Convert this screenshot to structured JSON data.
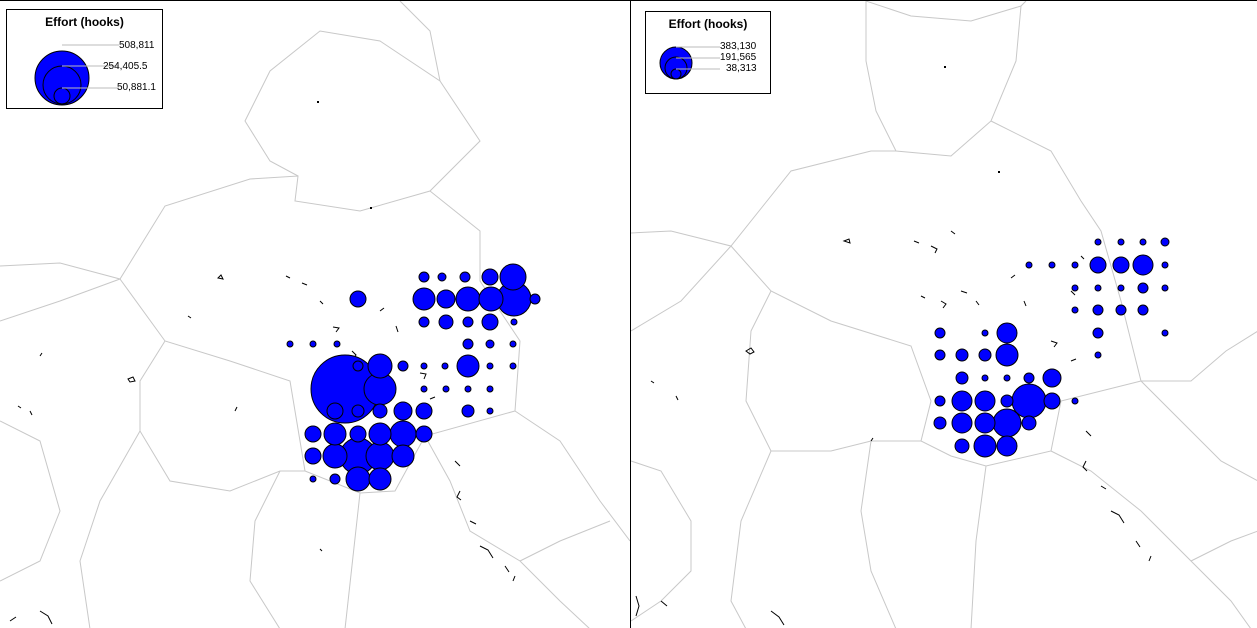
{
  "maps": [
    {
      "legend": {
        "title": "Effort (hooks)",
        "values": [
          "508,811",
          "254,405.5",
          "50,881.1"
        ]
      },
      "bubbles": [
        [
          513,
          276,
          13
        ],
        [
          490,
          276,
          8
        ],
        [
          465,
          276,
          5
        ],
        [
          442,
          276,
          4
        ],
        [
          424,
          276,
          5
        ],
        [
          424,
          298,
          11
        ],
        [
          446,
          298,
          9
        ],
        [
          468,
          298,
          12
        ],
        [
          491,
          298,
          12
        ],
        [
          514,
          298,
          17
        ],
        [
          535,
          298,
          5
        ],
        [
          358,
          298,
          8
        ],
        [
          424,
          321,
          5
        ],
        [
          446,
          321,
          7
        ],
        [
          468,
          321,
          5
        ],
        [
          490,
          321,
          8
        ],
        [
          514,
          321,
          3
        ],
        [
          468,
          343,
          5
        ],
        [
          490,
          343,
          4
        ],
        [
          513,
          343,
          3
        ],
        [
          290,
          343,
          3
        ],
        [
          313,
          343,
          3
        ],
        [
          337,
          343,
          3
        ],
        [
          358,
          365,
          5
        ],
        [
          380,
          365,
          12
        ],
        [
          403,
          365,
          5
        ],
        [
          424,
          365,
          3
        ],
        [
          445,
          365,
          3
        ],
        [
          468,
          365,
          11
        ],
        [
          490,
          365,
          3
        ],
        [
          513,
          365,
          3
        ],
        [
          345,
          388,
          34
        ],
        [
          380,
          388,
          16
        ],
        [
          424,
          388,
          3
        ],
        [
          446,
          388,
          3
        ],
        [
          468,
          388,
          3
        ],
        [
          490,
          388,
          3
        ],
        [
          335,
          410,
          8
        ],
        [
          358,
          410,
          6
        ],
        [
          380,
          410,
          7
        ],
        [
          403,
          410,
          9
        ],
        [
          424,
          410,
          8
        ],
        [
          468,
          410,
          6
        ],
        [
          490,
          410,
          3
        ],
        [
          313,
          433,
          8
        ],
        [
          335,
          433,
          11
        ],
        [
          358,
          433,
          8
        ],
        [
          380,
          433,
          11
        ],
        [
          403,
          433,
          13
        ],
        [
          424,
          433,
          8
        ],
        [
          313,
          455,
          8
        ],
        [
          335,
          455,
          12
        ],
        [
          358,
          455,
          18
        ],
        [
          380,
          455,
          14
        ],
        [
          403,
          455,
          11
        ],
        [
          313,
          478,
          3
        ],
        [
          335,
          478,
          5
        ],
        [
          358,
          478,
          12
        ],
        [
          380,
          478,
          11
        ]
      ]
    },
    {
      "legend": {
        "title": "Effort (hooks)",
        "values": [
          "383,130",
          "191,565",
          "38,313"
        ]
      },
      "bubbles": [
        [
          467,
          241,
          3
        ],
        [
          490,
          241,
          3
        ],
        [
          512,
          241,
          3
        ],
        [
          534,
          241,
          4
        ],
        [
          398,
          264,
          3
        ],
        [
          421,
          264,
          3
        ],
        [
          444,
          264,
          3
        ],
        [
          467,
          264,
          8
        ],
        [
          490,
          264,
          8
        ],
        [
          512,
          264,
          10
        ],
        [
          534,
          264,
          3
        ],
        [
          444,
          287,
          3
        ],
        [
          467,
          287,
          3
        ],
        [
          490,
          287,
          3
        ],
        [
          512,
          287,
          5
        ],
        [
          534,
          287,
          3
        ],
        [
          444,
          309,
          3
        ],
        [
          467,
          309,
          5
        ],
        [
          490,
          309,
          5
        ],
        [
          512,
          309,
          5
        ],
        [
          467,
          332,
          5
        ],
        [
          534,
          332,
          3
        ],
        [
          309,
          332,
          5
        ],
        [
          354,
          332,
          3
        ],
        [
          376,
          332,
          10
        ],
        [
          309,
          354,
          5
        ],
        [
          331,
          354,
          6
        ],
        [
          354,
          354,
          6
        ],
        [
          376,
          354,
          11
        ],
        [
          467,
          354,
          3
        ],
        [
          331,
          377,
          6
        ],
        [
          354,
          377,
          3
        ],
        [
          376,
          377,
          3
        ],
        [
          398,
          377,
          5
        ],
        [
          421,
          377,
          9
        ],
        [
          309,
          400,
          5
        ],
        [
          331,
          400,
          10
        ],
        [
          354,
          400,
          10
        ],
        [
          376,
          400,
          6
        ],
        [
          398,
          400,
          17
        ],
        [
          421,
          400,
          8
        ],
        [
          444,
          400,
          3
        ],
        [
          309,
          422,
          6
        ],
        [
          331,
          422,
          10
        ],
        [
          354,
          422,
          10
        ],
        [
          376,
          422,
          14
        ],
        [
          398,
          422,
          7
        ],
        [
          331,
          445,
          7
        ],
        [
          354,
          445,
          11
        ],
        [
          376,
          445,
          10
        ]
      ]
    }
  ]
}
